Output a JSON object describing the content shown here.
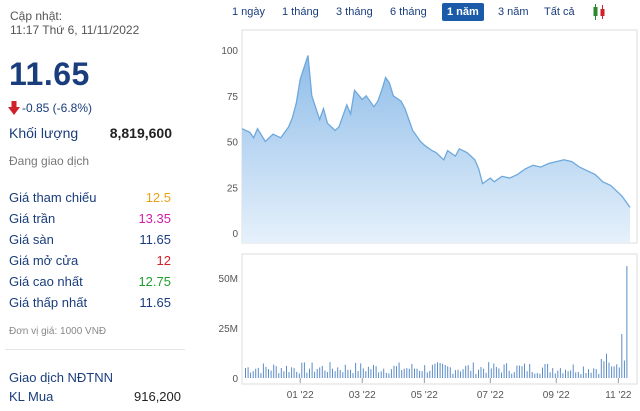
{
  "header": {
    "updated_label": "Cập nhật:",
    "updated_time": "11:17 Thứ 6, 11/11/2022"
  },
  "quote": {
    "price": "11.65",
    "change": "-0.85 (-6.8%)",
    "volume_label": "Khối lượng",
    "volume_value": "8,819,600",
    "status": "Đang giao dịch"
  },
  "stats": [
    {
      "label": "Giá tham chiếu",
      "value": "12.5",
      "color": "#e8a21a"
    },
    {
      "label": "Giá trần",
      "value": "13.35",
      "color": "#d020a8"
    },
    {
      "label": "Giá sàn",
      "value": "11.65",
      "color": "#1a3d7c"
    },
    {
      "label": "Giá mở cửa",
      "value": "12",
      "color": "#d0202a"
    },
    {
      "label": "Giá cao nhất",
      "value": "12.75",
      "color": "#1f9e2c"
    },
    {
      "label": "Giá thấp nhất",
      "value": "11.65",
      "color": "#1a3d7c"
    }
  ],
  "unit_note": "Đơn vị giá: 1000 VNĐ",
  "foreign": {
    "title": "Giao dịch NĐTNN",
    "kl_label": "KL Mua",
    "kl_value": "916,200"
  },
  "tabs": [
    {
      "label": "1 ngày",
      "active": false
    },
    {
      "label": "1 tháng",
      "active": false
    },
    {
      "label": "3 tháng",
      "active": false
    },
    {
      "label": "6 tháng",
      "active": false
    },
    {
      "label": "1 năm",
      "active": true
    },
    {
      "label": "3 năm",
      "active": false
    },
    {
      "label": "Tất cả",
      "active": false
    }
  ],
  "icons": {
    "down": "down-arrow-icon",
    "candlestick": "candlestick-icon"
  },
  "colors": {
    "accent": "#1a5aa8",
    "area_fill": "#a9cdee",
    "line": "#6ea8dc",
    "down": "#d0202a"
  },
  "chart_data": [
    {
      "type": "area",
      "yticks": [
        "0",
        "25",
        "50",
        "75",
        "100"
      ],
      "ylim": [
        0,
        100
      ],
      "xticks": [
        {
          "label": "01 '22",
          "t": 0.15
        },
        {
          "label": "03 '22",
          "t": 0.31
        },
        {
          "label": "05 '22",
          "t": 0.47
        },
        {
          "label": "07 '22",
          "t": 0.64
        },
        {
          "label": "09 '22",
          "t": 0.81
        },
        {
          "label": "11 '22",
          "t": 0.97
        }
      ],
      "x": [
        0,
        0.02,
        0.03,
        0.04,
        0.06,
        0.08,
        0.1,
        0.12,
        0.13,
        0.14,
        0.15,
        0.17,
        0.18,
        0.2,
        0.21,
        0.22,
        0.24,
        0.25,
        0.27,
        0.28,
        0.29,
        0.31,
        0.32,
        0.34,
        0.35,
        0.36,
        0.37,
        0.38,
        0.39,
        0.41,
        0.42,
        0.43,
        0.44,
        0.46,
        0.47,
        0.49,
        0.5,
        0.52,
        0.53,
        0.55,
        0.56,
        0.58,
        0.59,
        0.6,
        0.61,
        0.62,
        0.64,
        0.65,
        0.67,
        0.69,
        0.71,
        0.73,
        0.75,
        0.77,
        0.79,
        0.81,
        0.83,
        0.85,
        0.87,
        0.89,
        0.91,
        0.93,
        0.95,
        0.97,
        0.98,
        1.0
      ],
      "values": [
        57,
        55,
        52,
        57,
        50,
        54,
        52,
        58,
        63,
        71,
        84,
        97,
        75,
        62,
        68,
        60,
        56,
        58,
        70,
        65,
        78,
        73,
        75,
        69,
        72,
        78,
        85,
        82,
        75,
        72,
        68,
        62,
        56,
        50,
        48,
        45,
        44,
        40,
        45,
        42,
        46,
        44,
        42,
        40,
        35,
        27,
        30,
        28,
        31,
        30,
        32,
        35,
        37,
        36,
        38,
        39,
        40,
        39,
        36,
        34,
        32,
        28,
        26,
        22,
        20,
        14
      ]
    },
    {
      "type": "bar",
      "ytick_labels": [
        "0",
        "25M",
        "50M"
      ],
      "ylim": [
        0,
        58
      ],
      "note": "daily volume, roughly 3–8M per session with a spike near 56M at the end"
    }
  ]
}
